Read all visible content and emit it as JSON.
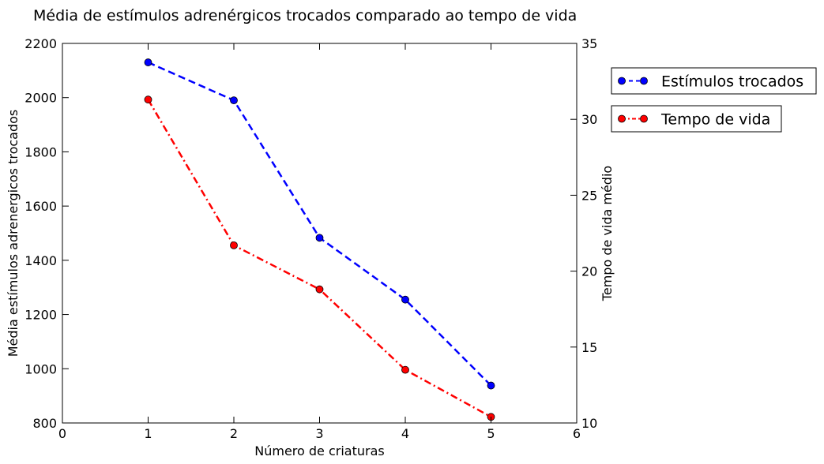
{
  "chart_data": {
    "type": "line",
    "title": "Média de estímulos adrenérgicos trocados comparado ao tempo de vida",
    "xlabel": "Número de criaturas",
    "ylabel_left": "Média estímulos adrenergicos trocados",
    "ylabel_right": "Tempo de vida médio",
    "xlim": [
      0,
      6
    ],
    "ylim_left": [
      800,
      2200
    ],
    "ylim_right": [
      10,
      35
    ],
    "xticks": [
      "0",
      "1",
      "2",
      "3",
      "4",
      "5",
      "6"
    ],
    "yticks_left": [
      "800",
      "1000",
      "1200",
      "1400",
      "1600",
      "1800",
      "2000",
      "2200"
    ],
    "yticks_right": [
      "10",
      "15",
      "20",
      "25",
      "30",
      "35"
    ],
    "grid": false,
    "legend_position": "outside-right",
    "series": [
      {
        "name": "Estímulos trocados",
        "axis": "left",
        "color": "#0000ff",
        "line_style": "dashed",
        "marker": "circle",
        "x": [
          1,
          2,
          3,
          4,
          5
        ],
        "y": [
          2130,
          1990,
          1483,
          1255,
          938
        ]
      },
      {
        "name": "Tempo de vida",
        "axis": "right",
        "color": "#ff0000",
        "line_style": "dash-dot",
        "marker": "circle",
        "x": [
          1,
          2,
          3,
          4,
          5
        ],
        "y": [
          31.3,
          21.7,
          18.8,
          13.5,
          10.4
        ]
      }
    ]
  }
}
